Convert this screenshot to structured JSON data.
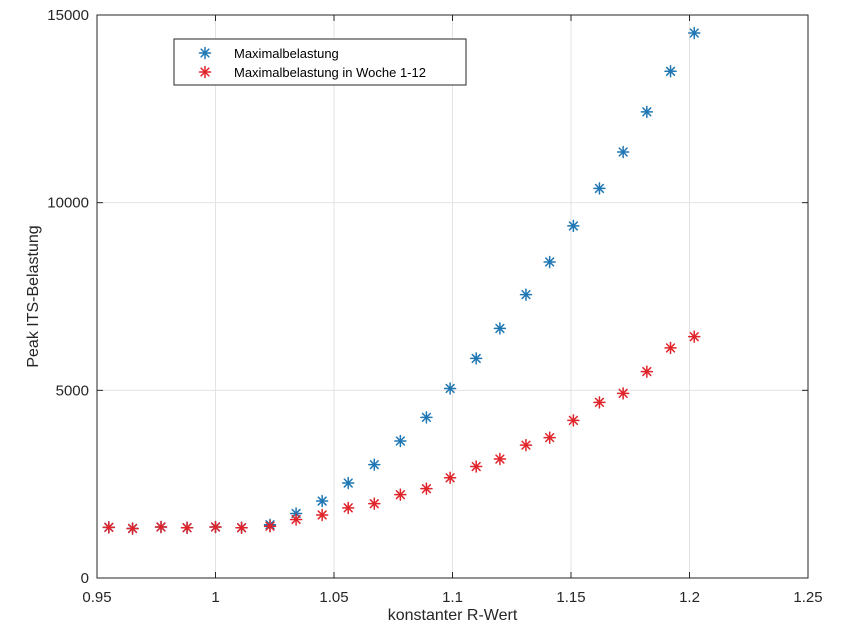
{
  "chart_data": {
    "type": "scatter",
    "title": "",
    "xlabel": "konstanter R-Wert",
    "ylabel": "Peak ITS-Belastung",
    "xlim": [
      0.95,
      1.25
    ],
    "ylim": [
      0,
      15000
    ],
    "xticks": [
      0.95,
      1,
      1.05,
      1.1,
      1.15,
      1.2,
      1.25
    ],
    "xtick_labels": [
      "0.95",
      "1",
      "1.05",
      "1.1",
      "1.15",
      "1.2",
      "1.25"
    ],
    "yticks": [
      0,
      5000,
      10000,
      15000
    ],
    "ytick_labels": [
      "0",
      "5000",
      "10000",
      "15000"
    ],
    "grid": true,
    "legend_position": "top-left",
    "marker": "asterisk",
    "series": [
      {
        "name": "Maximalbelastung",
        "color": "#1f77b4",
        "x": [
          0.955,
          0.965,
          0.977,
          0.988,
          1.0,
          1.011,
          1.023,
          1.034,
          1.045,
          1.056,
          1.067,
          1.078,
          1.089,
          1.099,
          1.11,
          1.12,
          1.131,
          1.141,
          1.151,
          1.162,
          1.172,
          1.182,
          1.192,
          1.202
        ],
        "y": [
          1350,
          1320,
          1360,
          1340,
          1360,
          1340,
          1420,
          1720,
          2050,
          2530,
          3020,
          3650,
          4280,
          5050,
          5850,
          6650,
          7550,
          8420,
          9380,
          10380,
          11350,
          12420,
          13500,
          14520
        ]
      },
      {
        "name": "Maximalbelastung in Woche 1-12",
        "color": "#e0242a",
        "x": [
          0.955,
          0.965,
          0.977,
          0.988,
          1.0,
          1.011,
          1.023,
          1.034,
          1.045,
          1.056,
          1.067,
          1.078,
          1.089,
          1.099,
          1.11,
          1.12,
          1.131,
          1.141,
          1.151,
          1.162,
          1.172,
          1.182,
          1.192,
          1.202
        ],
        "y": [
          1350,
          1320,
          1360,
          1340,
          1360,
          1340,
          1380,
          1560,
          1680,
          1870,
          1980,
          2220,
          2380,
          2670,
          2970,
          3170,
          3540,
          3740,
          4200,
          4680,
          4920,
          5500,
          6130,
          6430
        ]
      }
    ]
  }
}
